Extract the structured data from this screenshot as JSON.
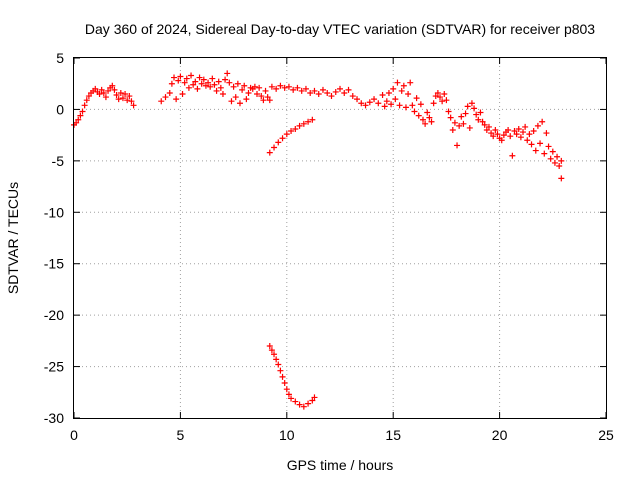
{
  "chart_data": {
    "type": "scatter",
    "title": "Day 360 of 2024, Sidereal Day-to-day VTEC variation (SDTVAR) for receiver p803",
    "xlabel": "GPS time / hours",
    "ylabel": "SDTVAR / TECUs",
    "xlim": [
      0,
      25
    ],
    "ylim": [
      -30,
      5
    ],
    "xticks": [
      0,
      5,
      10,
      15,
      20,
      25
    ],
    "xtick_labels": [
      "0",
      "5",
      "10",
      "15",
      "20",
      "25"
    ],
    "yticks": [
      5,
      0,
      -5,
      -10,
      -15,
      -20,
      -25,
      -30
    ],
    "ytick_labels": [
      "5",
      "0",
      "-5",
      "-10",
      "-15",
      "-20",
      "-25",
      "-30"
    ],
    "grid": true,
    "marker": "+",
    "color": "#ff0000",
    "series": [
      {
        "name": "SDTVAR",
        "points": [
          [
            0.0,
            -1.5
          ],
          [
            0.1,
            -1.3
          ],
          [
            0.2,
            -1.0
          ],
          [
            0.3,
            -0.6
          ],
          [
            0.4,
            -0.2
          ],
          [
            0.5,
            0.4
          ],
          [
            0.6,
            0.9
          ],
          [
            0.7,
            1.3
          ],
          [
            0.8,
            1.6
          ],
          [
            0.9,
            1.8
          ],
          [
            1.0,
            2.0
          ],
          [
            1.1,
            1.7
          ],
          [
            1.2,
            1.5
          ],
          [
            1.3,
            1.9
          ],
          [
            1.4,
            1.6
          ],
          [
            1.5,
            1.2
          ],
          [
            1.6,
            1.8
          ],
          [
            1.7,
            2.1
          ],
          [
            1.8,
            2.3
          ],
          [
            1.9,
            1.9
          ],
          [
            2.0,
            1.4
          ],
          [
            2.1,
            1.0
          ],
          [
            2.2,
            1.6
          ],
          [
            2.3,
            1.1
          ],
          [
            2.4,
            1.5
          ],
          [
            2.5,
            0.9
          ],
          [
            2.6,
            1.3
          ],
          [
            2.7,
            0.8
          ],
          [
            2.8,
            0.4
          ],
          [
            4.1,
            0.8
          ],
          [
            4.3,
            1.2
          ],
          [
            4.5,
            1.6
          ],
          [
            4.6,
            2.5
          ],
          [
            4.7,
            3.1
          ],
          [
            4.8,
            1.0
          ],
          [
            4.9,
            2.8
          ],
          [
            5.0,
            3.2
          ],
          [
            5.1,
            1.5
          ],
          [
            5.2,
            2.6
          ],
          [
            5.3,
            3.0
          ],
          [
            5.4,
            2.1
          ],
          [
            5.5,
            3.3
          ],
          [
            5.6,
            2.4
          ],
          [
            5.7,
            2.7
          ],
          [
            5.8,
            2.0
          ],
          [
            5.9,
            3.1
          ],
          [
            6.0,
            2.5
          ],
          [
            6.1,
            2.9
          ],
          [
            6.2,
            2.3
          ],
          [
            6.3,
            2.6
          ],
          [
            6.4,
            2.2
          ],
          [
            6.5,
            3.0
          ],
          [
            6.6,
            2.4
          ],
          [
            6.7,
            1.8
          ],
          [
            6.8,
            2.7
          ],
          [
            6.9,
            2.1
          ],
          [
            7.0,
            1.5
          ],
          [
            7.1,
            2.9
          ],
          [
            7.2,
            3.5
          ],
          [
            7.3,
            2.6
          ],
          [
            7.4,
            0.8
          ],
          [
            7.5,
            2.2
          ],
          [
            7.6,
            1.2
          ],
          [
            7.7,
            2.5
          ],
          [
            7.8,
            0.6
          ],
          [
            7.9,
            1.9
          ],
          [
            8.0,
            2.3
          ],
          [
            8.1,
            1.0
          ],
          [
            8.2,
            1.6
          ],
          [
            8.3,
            2.1
          ],
          [
            8.4,
            2.0
          ],
          [
            8.5,
            2.2
          ],
          [
            8.6,
            1.5
          ],
          [
            8.7,
            2.1
          ],
          [
            8.8,
            1.3
          ],
          [
            8.9,
            0.9
          ],
          [
            9.0,
            1.8
          ],
          [
            9.1,
            1.2
          ],
          [
            9.2,
            0.9
          ],
          [
            9.3,
            2.2
          ],
          [
            9.5,
            2.0
          ],
          [
            9.7,
            2.3
          ],
          [
            9.9,
            2.1
          ],
          [
            10.1,
            2.2
          ],
          [
            10.3,
            1.9
          ],
          [
            10.5,
            2.1
          ],
          [
            10.7,
            1.8
          ],
          [
            10.9,
            2.0
          ],
          [
            11.1,
            1.6
          ],
          [
            11.3,
            1.8
          ],
          [
            11.5,
            1.5
          ],
          [
            11.7,
            1.9
          ],
          [
            11.9,
            1.6
          ],
          [
            12.1,
            1.3
          ],
          [
            9.2,
            -4.2
          ],
          [
            9.4,
            -3.7
          ],
          [
            9.6,
            -3.2
          ],
          [
            9.8,
            -2.8
          ],
          [
            10.0,
            -2.4
          ],
          [
            10.2,
            -2.1
          ],
          [
            10.4,
            -1.9
          ],
          [
            10.6,
            -1.6
          ],
          [
            10.8,
            -1.4
          ],
          [
            11.0,
            -1.2
          ],
          [
            11.2,
            -1.0
          ],
          [
            12.3,
            1.7
          ],
          [
            12.5,
            2.0
          ],
          [
            12.7,
            1.6
          ],
          [
            12.9,
            1.9
          ],
          [
            13.1,
            1.3
          ],
          [
            13.3,
            1.0
          ],
          [
            13.5,
            0.6
          ],
          [
            13.7,
            0.4
          ],
          [
            13.9,
            0.7
          ],
          [
            14.1,
            1.0
          ],
          [
            14.3,
            0.6
          ],
          [
            14.5,
            1.4
          ],
          [
            14.6,
            0.3
          ],
          [
            14.7,
            0.8
          ],
          [
            14.8,
            1.6
          ],
          [
            14.9,
            0.5
          ],
          [
            15.0,
            2.0
          ],
          [
            15.1,
            1.0
          ],
          [
            15.2,
            2.6
          ],
          [
            15.3,
            0.4
          ],
          [
            15.4,
            1.8
          ],
          [
            15.5,
            2.3
          ],
          [
            15.6,
            0.2
          ],
          [
            15.7,
            1.5
          ],
          [
            15.8,
            2.6
          ],
          [
            15.9,
            0.4
          ],
          [
            16.0,
            -0.2
          ],
          [
            16.1,
            1.1
          ],
          [
            16.2,
            -0.6
          ],
          [
            16.3,
            0.5
          ],
          [
            16.4,
            -1.0
          ],
          [
            16.5,
            -1.4
          ],
          [
            16.6,
            -0.3
          ],
          [
            16.7,
            -0.8
          ],
          [
            16.8,
            -1.2
          ],
          [
            16.9,
            0.6
          ],
          [
            17.0,
            1.3
          ],
          [
            17.1,
            1.6
          ],
          [
            17.2,
            1.2
          ],
          [
            17.3,
            0.8
          ],
          [
            17.4,
            1.5
          ],
          [
            17.5,
            0.9
          ],
          [
            17.6,
            -0.2
          ],
          [
            17.7,
            -0.8
          ],
          [
            17.8,
            -2.0
          ],
          [
            17.9,
            -1.3
          ],
          [
            18.0,
            -3.5
          ],
          [
            18.1,
            -1.6
          ],
          [
            18.2,
            -0.7
          ],
          [
            18.3,
            -1.4
          ],
          [
            18.4,
            -0.4
          ],
          [
            18.5,
            0.3
          ],
          [
            18.6,
            -1.8
          ],
          [
            18.7,
            0.6
          ],
          [
            18.8,
            0.1
          ],
          [
            18.9,
            -0.5
          ],
          [
            19.0,
            -1.0
          ],
          [
            19.1,
            -0.3
          ],
          [
            19.2,
            -1.2
          ],
          [
            19.3,
            -1.5
          ],
          [
            19.4,
            -2.0
          ],
          [
            19.5,
            -1.7
          ],
          [
            19.6,
            -2.3
          ],
          [
            19.7,
            -2.6
          ],
          [
            19.8,
            -2.0
          ],
          [
            19.9,
            -2.4
          ],
          [
            20.0,
            -2.8
          ],
          [
            20.1,
            -3.0
          ],
          [
            20.2,
            -2.5
          ],
          [
            20.3,
            -2.2
          ],
          [
            20.4,
            -2.0
          ],
          [
            20.5,
            -2.6
          ],
          [
            20.6,
            -4.5
          ],
          [
            20.7,
            -2.1
          ],
          [
            20.8,
            -2.4
          ],
          [
            20.9,
            -1.9
          ],
          [
            21.0,
            -2.7
          ],
          [
            21.1,
            -2.2
          ],
          [
            21.2,
            -1.7
          ],
          [
            21.3,
            -3.0
          ],
          [
            21.4,
            -2.4
          ],
          [
            21.5,
            -3.4
          ],
          [
            21.6,
            -2.1
          ],
          [
            21.7,
            -4.0
          ],
          [
            21.8,
            -1.6
          ],
          [
            21.9,
            -3.3
          ],
          [
            22.0,
            -1.2
          ],
          [
            22.1,
            -4.3
          ],
          [
            22.2,
            -2.3
          ],
          [
            22.3,
            -3.6
          ],
          [
            22.4,
            -4.8
          ],
          [
            22.5,
            -4.1
          ],
          [
            22.6,
            -5.2
          ],
          [
            22.7,
            -4.6
          ],
          [
            22.8,
            -5.5
          ],
          [
            22.9,
            -5.0
          ],
          [
            22.9,
            -6.7
          ],
          [
            9.2,
            -23.0
          ],
          [
            9.3,
            -23.4
          ],
          [
            9.4,
            -23.8
          ],
          [
            9.5,
            -24.3
          ],
          [
            9.6,
            -24.8
          ],
          [
            9.7,
            -25.4
          ],
          [
            9.8,
            -26.0
          ],
          [
            9.9,
            -26.6
          ],
          [
            10.0,
            -27.2
          ],
          [
            10.1,
            -27.7
          ],
          [
            10.2,
            -28.1
          ],
          [
            10.4,
            -28.4
          ],
          [
            10.6,
            -28.7
          ],
          [
            10.8,
            -28.9
          ],
          [
            11.0,
            -28.6
          ],
          [
            11.2,
            -28.3
          ],
          [
            11.3,
            -28.0
          ]
        ]
      }
    ]
  }
}
